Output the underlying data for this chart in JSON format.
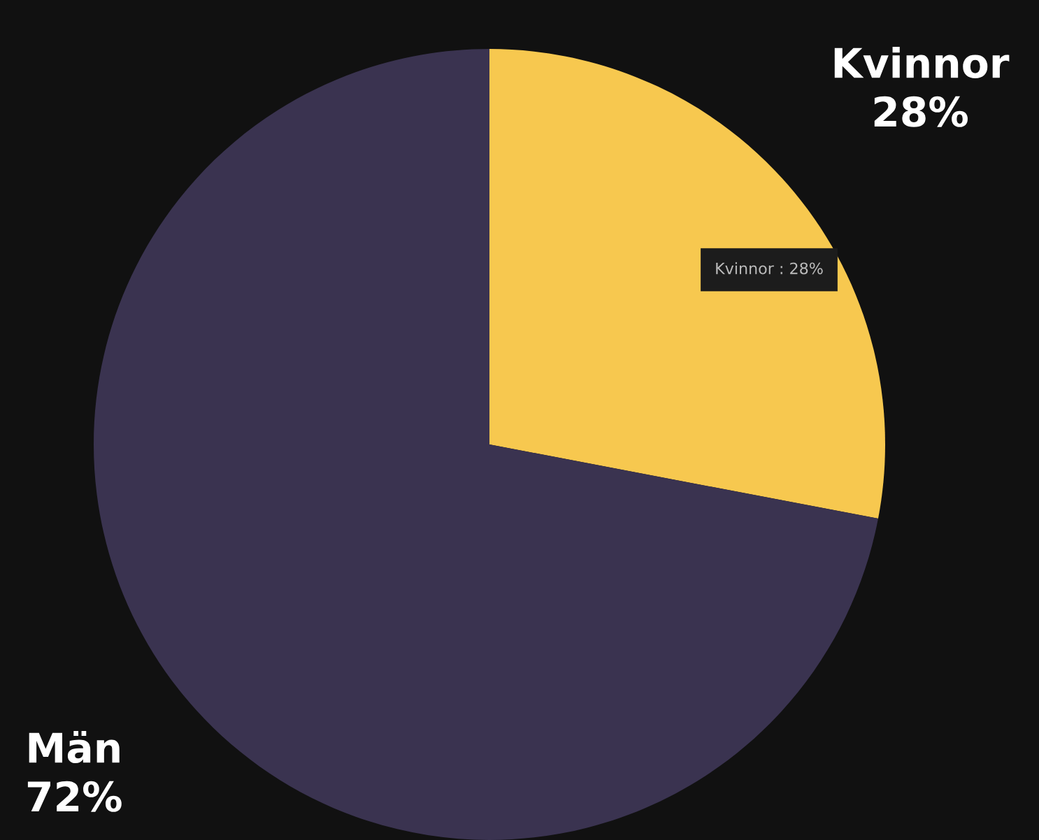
{
  "chart_data": {
    "type": "pie",
    "categories": [
      "Kvinnor",
      "Män"
    ],
    "values": [
      28,
      72
    ],
    "value_labels": [
      "28%",
      "72%"
    ],
    "colors": [
      "#f7c84f",
      "#3a3350"
    ],
    "annotations": [
      "Kvinnor : 28%"
    ]
  }
}
